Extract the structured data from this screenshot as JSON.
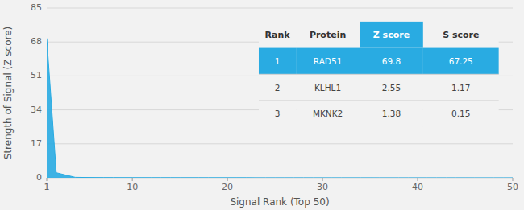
{
  "chart_data": {
    "type": "area",
    "xlabel": "Signal Rank (Top 50)",
    "ylabel": "Strength of Signal (Z score)",
    "x": [
      1,
      2,
      3,
      4,
      5,
      6,
      7,
      8,
      9,
      10,
      11,
      12,
      13,
      14,
      15,
      16,
      17,
      18,
      19,
      20,
      21,
      22,
      23,
      24,
      25,
      26,
      27,
      28,
      29,
      30,
      31,
      32,
      33,
      34,
      35,
      36,
      37,
      38,
      39,
      40,
      41,
      42,
      43,
      44,
      45,
      46,
      47,
      48,
      49,
      50
    ],
    "values": [
      69.8,
      2.55,
      1.38,
      0.25,
      0.18,
      0.15,
      0.12,
      0.11,
      0.1,
      0.09,
      0.09,
      0.08,
      0.08,
      0.08,
      0.07,
      0.07,
      0.07,
      0.06,
      0.06,
      0.06,
      0.06,
      0.06,
      0.05,
      0.05,
      0.05,
      0.05,
      0.05,
      0.05,
      0.04,
      0.04,
      0.04,
      0.04,
      0.04,
      0.04,
      0.04,
      0.03,
      0.03,
      0.03,
      0.03,
      0.03,
      0.03,
      0.03,
      0.03,
      0.03,
      0.03,
      0.02,
      0.02,
      0.02,
      0.02,
      0.02
    ],
    "color": "#29abe2",
    "xlim": [
      1,
      50
    ],
    "xticks": [
      1,
      10,
      20,
      30,
      40,
      50
    ],
    "ylim": [
      0,
      85
    ],
    "yticks": [
      0,
      17,
      34,
      51,
      68,
      85
    ],
    "grid": true,
    "table": {
      "header": [
        "Rank",
        "Protein",
        "Z score",
        "S score"
      ],
      "rows": [
        [
          "1",
          "RAD51",
          "69.8",
          "67.25"
        ],
        [
          "2",
          "KLHL1",
          "2.55",
          "1.17"
        ],
        [
          "3",
          "MKNK2",
          "1.38",
          "0.15"
        ]
      ]
    }
  }
}
